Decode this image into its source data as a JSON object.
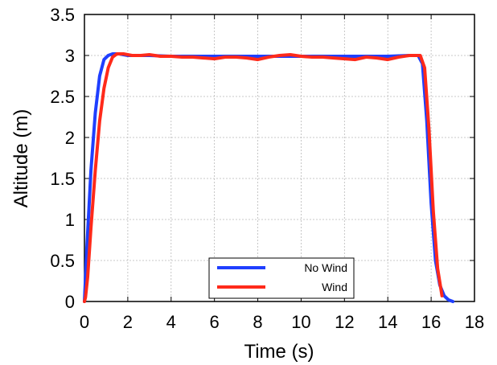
{
  "chart_data": {
    "type": "line",
    "xlabel": "Time (s)",
    "ylabel": "Altitude (m)",
    "xlim": [
      0,
      18
    ],
    "ylim": [
      0,
      3.5
    ],
    "xticks": [
      0,
      2,
      4,
      6,
      8,
      10,
      12,
      14,
      16,
      18
    ],
    "yticks": [
      0,
      0.5,
      1,
      1.5,
      2,
      2.5,
      3,
      3.5
    ],
    "xtick_labels": [
      "0",
      "2",
      "4",
      "6",
      "8",
      "10",
      "12",
      "14",
      "16",
      "18"
    ],
    "ytick_labels": [
      "0",
      "0.5",
      "1",
      "1.5",
      "2",
      "2.5",
      "3",
      "3.5"
    ],
    "grid": true,
    "legend_position": "bottom-center",
    "series": [
      {
        "name": "No Wind",
        "color": "#1f3fff",
        "x": [
          0,
          0.1,
          0.3,
          0.5,
          0.7,
          0.9,
          1.1,
          1.3,
          1.6,
          2,
          3,
          4,
          5,
          6,
          7,
          8,
          9,
          10,
          11,
          12,
          13,
          14,
          15,
          15.4,
          15.6,
          15.8,
          16.0,
          16.2,
          16.4,
          16.6,
          16.8,
          17.0
        ],
        "y": [
          0,
          0.6,
          1.6,
          2.3,
          2.75,
          2.95,
          3.0,
          3.02,
          3.02,
          3.0,
          3.0,
          2.99,
          2.99,
          2.99,
          2.99,
          2.99,
          2.99,
          2.99,
          2.99,
          2.99,
          2.99,
          2.99,
          3.0,
          3.0,
          2.9,
          2.2,
          1.2,
          0.5,
          0.2,
          0.07,
          0.02,
          0.0
        ]
      },
      {
        "name": "Wind",
        "color": "#ff2a1a",
        "x": [
          0,
          0.05,
          0.15,
          0.3,
          0.5,
          0.7,
          0.9,
          1.1,
          1.3,
          1.5,
          1.8,
          2.2,
          2.6,
          3.0,
          3.5,
          4.0,
          4.5,
          5.0,
          5.5,
          6.0,
          6.5,
          7.0,
          7.5,
          8.0,
          8.5,
          9.0,
          9.5,
          10.0,
          10.5,
          11.0,
          11.5,
          12.0,
          12.5,
          13.0,
          13.5,
          14.0,
          14.5,
          15.0,
          15.3,
          15.5,
          15.7,
          15.9,
          16.1,
          16.3,
          16.5
        ],
        "y": [
          0,
          0.05,
          0.3,
          0.9,
          1.6,
          2.2,
          2.6,
          2.85,
          2.98,
          3.02,
          3.02,
          3.0,
          3.0,
          3.01,
          2.99,
          2.99,
          2.98,
          2.98,
          2.97,
          2.96,
          2.98,
          2.98,
          2.97,
          2.95,
          2.98,
          3.0,
          3.01,
          2.99,
          2.98,
          2.98,
          2.97,
          2.96,
          2.95,
          2.98,
          2.97,
          2.95,
          2.98,
          3.0,
          3.0,
          3.0,
          2.85,
          2.1,
          1.1,
          0.4,
          0.07
        ]
      }
    ]
  }
}
